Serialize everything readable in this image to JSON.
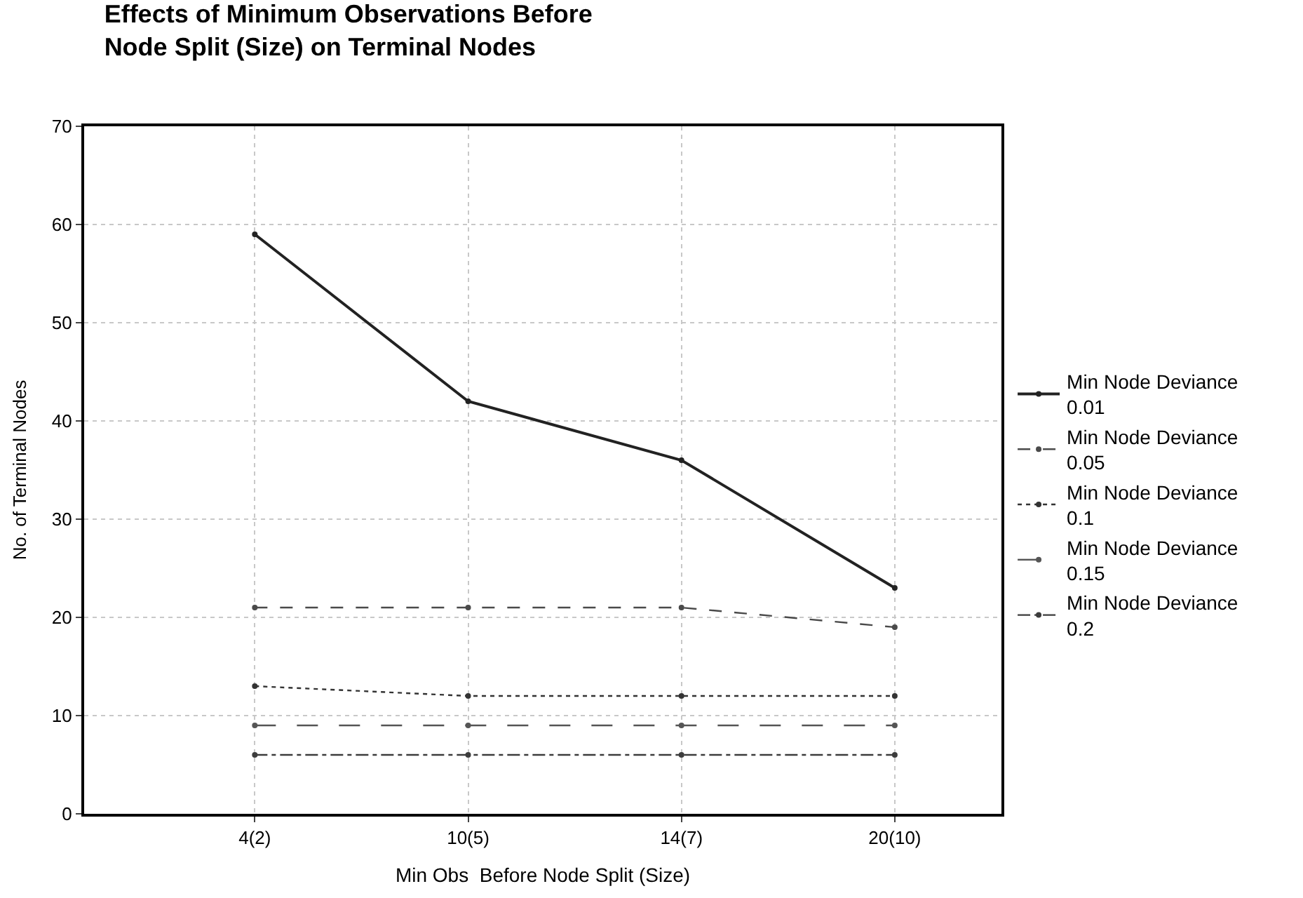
{
  "chart_data": {
    "type": "line",
    "title": "Effects of Minimum Observations Before Node Split (Size) on Terminal Nodes",
    "xlabel": "Min Obs  Before Node Split (Size)",
    "ylabel": "No. of Terminal Nodes",
    "categories": [
      "4(2)",
      "10(5)",
      "14(7)",
      "20(10)"
    ],
    "series": [
      {
        "name": "Min Node Deviance 0.01",
        "color": "#222222",
        "values": [
          59,
          42,
          36,
          23
        ],
        "line_style": "solid"
      },
      {
        "name": "Min Node Deviance 0.05",
        "color": "#4a4a4a",
        "values": [
          21,
          21,
          21,
          19
        ],
        "line_style": "dashed"
      },
      {
        "name": "Min Node Deviance 0.1",
        "color": "#333333",
        "values": [
          13,
          12,
          12,
          12
        ],
        "line_style": "dotted"
      },
      {
        "name": "Min Node Deviance 0.15",
        "color": "#555555",
        "values": [
          9,
          9,
          9,
          9
        ],
        "line_style": "longdash"
      },
      {
        "name": "Min Node Deviance 0.2",
        "color": "#3c3c3c",
        "values": [
          6,
          6,
          6,
          6
        ],
        "line_style": "dashdot"
      }
    ],
    "ylim": [
      0,
      70
    ],
    "yticks": [
      0,
      10,
      20,
      30,
      40,
      50,
      60,
      70
    ],
    "grid": true,
    "legend": "right",
    "marker": "circle"
  }
}
